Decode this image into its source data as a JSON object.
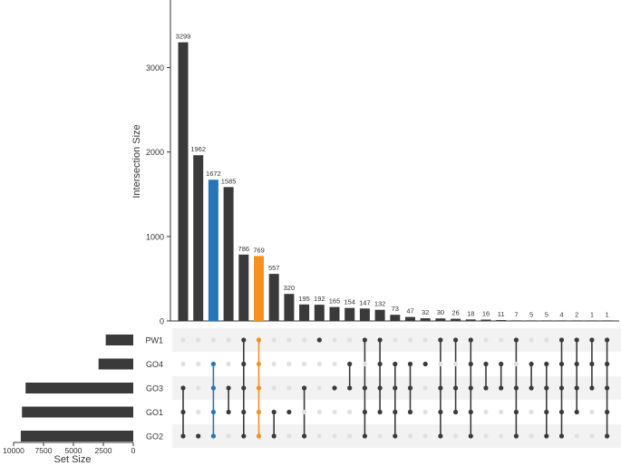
{
  "chart_data": {
    "type": "upset",
    "ylabel": "Intersection Size",
    "xlabel_sets": "Set Size",
    "y_ticks": [
      0,
      1000,
      2000,
      3000
    ],
    "set_size_ticks": [
      "10000",
      "7500",
      "5000",
      "2500",
      "0"
    ],
    "set_size_tick_values": [
      10000,
      7500,
      5000,
      2500,
      0
    ],
    "set_size_max": 10000,
    "ylim": [
      0,
      3800
    ],
    "sets": [
      {
        "name": "PW1",
        "size": 2300
      },
      {
        "name": "GO4",
        "size": 2900
      },
      {
        "name": "GO3",
        "size": 9000
      },
      {
        "name": "GO1",
        "size": 9300
      },
      {
        "name": "GO2",
        "size": 9400
      }
    ],
    "intersections": [
      {
        "size": 3299,
        "label": "3299",
        "sets": [
          "GO3",
          "GO1",
          "GO2"
        ],
        "color": "#3a3a3a"
      },
      {
        "size": 1962,
        "label": "1962",
        "sets": [
          "GO2"
        ],
        "color": "#3a3a3a"
      },
      {
        "size": 1672,
        "label": "1672",
        "sets": [
          "GO4",
          "GO3",
          "GO1",
          "GO2"
        ],
        "color": "#2775b6"
      },
      {
        "size": 1585,
        "label": "1585",
        "sets": [
          "GO3",
          "GO1"
        ],
        "color": "#3a3a3a"
      },
      {
        "size": 786,
        "label": "786",
        "sets": [
          "PW1",
          "GO4",
          "GO3",
          "GO1",
          "GO2"
        ],
        "color": "#3a3a3a"
      },
      {
        "size": 769,
        "label": "769",
        "sets": [
          "PW1",
          "GO4",
          "GO3",
          "GO1",
          "GO2"
        ],
        "color": "#f7901e"
      },
      {
        "size": 557,
        "label": "557",
        "sets": [
          "GO1",
          "GO2"
        ],
        "color": "#3a3a3a"
      },
      {
        "size": 320,
        "label": "320",
        "sets": [
          "GO1"
        ],
        "color": "#3a3a3a"
      },
      {
        "size": 195,
        "label": "195",
        "sets": [
          "GO3",
          "GO2"
        ],
        "color": "#3a3a3a"
      },
      {
        "size": 192,
        "label": "192",
        "sets": [
          "PW1"
        ],
        "color": "#3a3a3a"
      },
      {
        "size": 165,
        "label": "165",
        "sets": [
          "GO3"
        ],
        "color": "#3a3a3a"
      },
      {
        "size": 154,
        "label": "154",
        "sets": [
          "GO4",
          "GO3"
        ],
        "color": "#3a3a3a"
      },
      {
        "size": 147,
        "label": "147",
        "sets": [
          "PW1",
          "GO3",
          "GO1",
          "GO2"
        ],
        "color": "#3a3a3a"
      },
      {
        "size": 132,
        "label": "132",
        "sets": [
          "PW1",
          "GO4",
          "GO3",
          "GO1"
        ],
        "color": "#3a3a3a"
      },
      {
        "size": 73,
        "label": "73",
        "sets": [
          "GO4",
          "GO3",
          "GO1",
          "GO2"
        ],
        "color": "#3a3a3a"
      },
      {
        "size": 47,
        "label": "47",
        "sets": [
          "GO4",
          "GO3",
          "GO1"
        ],
        "color": "#3a3a3a"
      },
      {
        "size": 32,
        "label": "32",
        "sets": [
          "GO4"
        ],
        "color": "#3a3a3a"
      },
      {
        "size": 30,
        "label": "30",
        "sets": [
          "PW1",
          "GO3",
          "GO1",
          "GO2"
        ],
        "color": "#3a3a3a"
      },
      {
        "size": 26,
        "label": "26",
        "sets": [
          "PW1",
          "GO3",
          "GO1"
        ],
        "color": "#3a3a3a"
      },
      {
        "size": 18,
        "label": "18",
        "sets": [
          "PW1",
          "GO4",
          "GO3",
          "GO1",
          "GO2"
        ],
        "color": "#3a3a3a"
      },
      {
        "size": 16,
        "label": "16",
        "sets": [
          "GO4",
          "GO3"
        ],
        "color": "#3a3a3a"
      },
      {
        "size": 11,
        "label": "11",
        "sets": [
          "GO4",
          "GO3"
        ],
        "color": "#3a3a3a"
      },
      {
        "size": 7,
        "label": "7",
        "sets": [
          "PW1",
          "GO3",
          "GO1",
          "GO2"
        ],
        "color": "#3a3a3a"
      },
      {
        "size": 5,
        "label": "5",
        "sets": [
          "GO4",
          "GO3"
        ],
        "color": "#3a3a3a"
      },
      {
        "size": 5,
        "label": "5",
        "sets": [
          "GO4",
          "GO3",
          "GO1",
          "GO2"
        ],
        "color": "#3a3a3a"
      },
      {
        "size": 4,
        "label": "4",
        "sets": [
          "PW1",
          "GO4",
          "GO3",
          "GO1",
          "GO2"
        ],
        "color": "#3a3a3a"
      },
      {
        "size": 2,
        "label": "2",
        "sets": [
          "PW1",
          "GO4",
          "GO3",
          "GO1"
        ],
        "color": "#3a3a3a"
      },
      {
        "size": 1,
        "label": "1",
        "sets": [
          "PW1",
          "GO4",
          "GO3"
        ],
        "color": "#3a3a3a"
      },
      {
        "size": 1,
        "label": "1",
        "sets": [
          "PW1",
          "GO4",
          "GO3",
          "GO1",
          "GO2"
        ],
        "color": "#3a3a3a"
      }
    ],
    "colors": {
      "bar": "#3a3a3a",
      "highlight_blue": "#2775b6",
      "highlight_orange": "#f7901e",
      "inactive_dot": "#e0e0e0",
      "stripe": "#f2f2f2"
    }
  }
}
